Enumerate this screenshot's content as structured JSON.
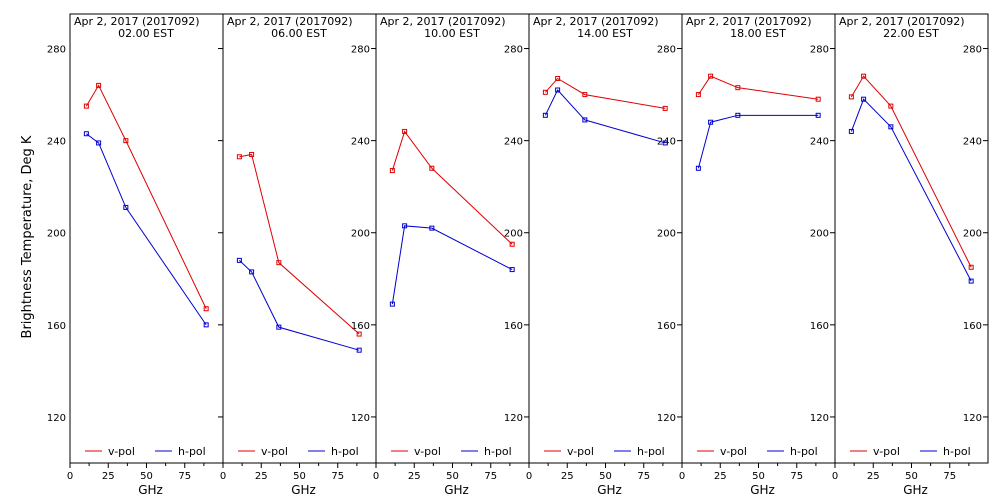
{
  "figure": {
    "ylabel": "Brightness Temperature, Deg K",
    "xlabel": "GHz",
    "date_label": "Apr  2, 2017 (2017092)",
    "colors": {
      "v_pol": "#e00000",
      "h_pol": "#0000d0",
      "axis": "#000000"
    }
  },
  "chart_data": [
    {
      "type": "line",
      "time_label": "02.00 EST",
      "x": [
        10.7,
        18.7,
        36.5,
        89.0
      ],
      "series": [
        {
          "name": "v-pol",
          "values": [
            255,
            264,
            240,
            167
          ]
        },
        {
          "name": "h-pol",
          "values": [
            243,
            239,
            211,
            160
          ]
        }
      ],
      "xlim": [
        0,
        100
      ],
      "ylim": [
        100,
        295
      ],
      "xticks": [
        0,
        25,
        50,
        75
      ],
      "yticks": [
        120,
        160,
        200,
        240,
        280
      ]
    },
    {
      "type": "line",
      "time_label": "06.00 EST",
      "x": [
        10.7,
        18.7,
        36.5,
        89.0
      ],
      "series": [
        {
          "name": "v-pol",
          "values": [
            233,
            234,
            187,
            156
          ]
        },
        {
          "name": "h-pol",
          "values": [
            188,
            183,
            159,
            149
          ]
        }
      ],
      "xlim": [
        0,
        100
      ],
      "ylim": [
        100,
        295
      ],
      "xticks": [
        0,
        25,
        50,
        75
      ],
      "yticks": [
        120,
        160,
        200,
        240,
        280
      ]
    },
    {
      "type": "line",
      "time_label": "10.00 EST",
      "x": [
        10.7,
        18.7,
        36.5,
        89.0
      ],
      "series": [
        {
          "name": "v-pol",
          "values": [
            227,
            244,
            228,
            195
          ]
        },
        {
          "name": "h-pol",
          "values": [
            169,
            203,
            202,
            184
          ]
        }
      ],
      "xlim": [
        0,
        100
      ],
      "ylim": [
        100,
        295
      ],
      "xticks": [
        0,
        25,
        50,
        75
      ],
      "yticks": [
        120,
        160,
        200,
        240,
        280
      ]
    },
    {
      "type": "line",
      "time_label": "14.00 EST",
      "x": [
        10.7,
        18.7,
        36.5,
        89.0
      ],
      "series": [
        {
          "name": "v-pol",
          "values": [
            261,
            267,
            260,
            254
          ]
        },
        {
          "name": "h-pol",
          "values": [
            251,
            262,
            249,
            239
          ]
        }
      ],
      "xlim": [
        0,
        100
      ],
      "ylim": [
        100,
        295
      ],
      "xticks": [
        0,
        25,
        50,
        75
      ],
      "yticks": [
        120,
        160,
        200,
        240,
        280
      ]
    },
    {
      "type": "line",
      "time_label": "18.00 EST",
      "x": [
        10.7,
        18.7,
        36.5,
        89.0
      ],
      "series": [
        {
          "name": "v-pol",
          "values": [
            260,
            268,
            263,
            258
          ]
        },
        {
          "name": "h-pol",
          "values": [
            228,
            248,
            251,
            251
          ]
        }
      ],
      "xlim": [
        0,
        100
      ],
      "ylim": [
        100,
        295
      ],
      "xticks": [
        0,
        25,
        50,
        75
      ],
      "yticks": [
        120,
        160,
        200,
        240,
        280
      ]
    },
    {
      "type": "line",
      "time_label": "22.00 EST",
      "x": [
        10.7,
        18.7,
        36.5,
        89.0
      ],
      "series": [
        {
          "name": "v-pol",
          "values": [
            259,
            268,
            255,
            185
          ]
        },
        {
          "name": "h-pol",
          "values": [
            244,
            258,
            246,
            179
          ]
        }
      ],
      "xlim": [
        0,
        100
      ],
      "ylim": [
        100,
        295
      ],
      "xticks": [
        0,
        25,
        50,
        75
      ],
      "yticks": [
        120,
        160,
        200,
        240,
        280
      ]
    }
  ]
}
